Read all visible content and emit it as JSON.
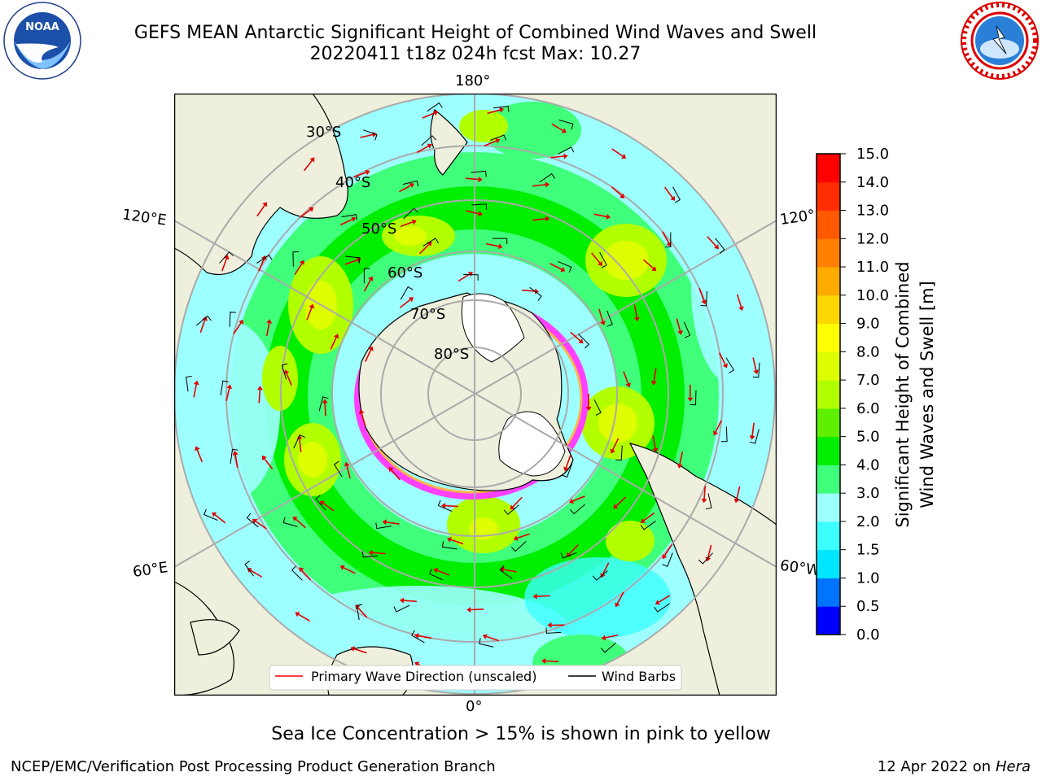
{
  "title": {
    "line1": "GEFS MEAN Antarctic Significant Height of Combined Wind Waves and Swell",
    "line2": "20220411 t18z 024h fcst   Max: 10.27"
  },
  "logos": {
    "left": {
      "text": "NOAA",
      "ring_text": "NATIONAL OCEANIC AND ATMOSPHERIC ADMINISTRATION · U.S. DEPARTMENT OF COMMERCE"
    },
    "right": {
      "ring_text": "NATIONAL WEATHER SERVICE"
    }
  },
  "map": {
    "projection": "south-polar-stereographic",
    "lon_labels": [
      "180°",
      "120°E",
      "120°",
      "60°E",
      "60°W",
      "0°"
    ],
    "lat_labels": [
      "30°S",
      "40°S",
      "50°S",
      "60°S",
      "70°S",
      "80°S"
    ],
    "legend": {
      "items": [
        "Primary Wave Direction (unscaled)",
        "Wind Barbs"
      ],
      "colors": [
        "#ff0000",
        "#000000"
      ]
    }
  },
  "colorbar": {
    "label_line1": "Significant Height of Combined",
    "label_line2": "Wind Waves and Swell [m]",
    "ticks": [
      "0.0",
      "0.5",
      "1.0",
      "1.5",
      "2.0",
      "3.0",
      "4.0",
      "5.0",
      "6.0",
      "7.0",
      "8.0",
      "9.0",
      "10.0",
      "11.0",
      "12.0",
      "13.0",
      "14.0",
      "15.0"
    ],
    "colors": [
      "#0000ff",
      "#0073ff",
      "#00e6ff",
      "#3cffff",
      "#9dffff",
      "#40ff7a",
      "#00ee00",
      "#5ef000",
      "#b2ff00",
      "#ddff00",
      "#ffff00",
      "#ffd700",
      "#ffab00",
      "#ff8000",
      "#ff5a00",
      "#ff2d00",
      "#ff0000"
    ]
  },
  "caption": "Sea Ice Concentration > 15% is shown in pink to yellow",
  "footer": {
    "left": "NCEP/EMC/Verification Post Processing Product Generation Branch",
    "right_date": "12 Apr 2022 on ",
    "right_host": "Hera"
  }
}
